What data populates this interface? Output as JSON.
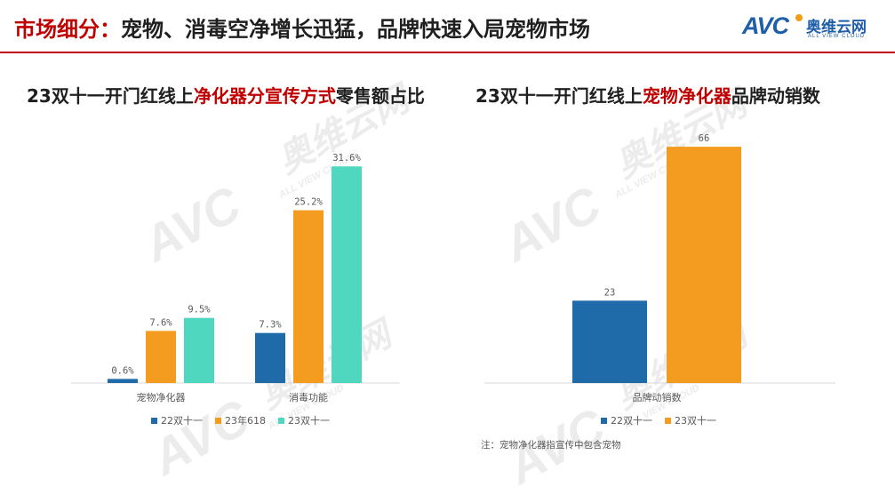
{
  "header": {
    "title_prefix": "市场细分：",
    "title_rest": "宠物、消毒空净增长迅猛，品牌快速入局宠物市场",
    "logo_text": "AVC",
    "logo_cn": "奥维云网",
    "logo_en": "ALL VIEW CLOUD",
    "colors": {
      "accent": "#c00000",
      "brand": "#1f5ea8"
    }
  },
  "left_title": {
    "pre": "23双十一开门红线上",
    "highlight": "净化器分宣传方式",
    "post": "零售额占比"
  },
  "right_title": {
    "pre": "23双十一开门红线上",
    "highlight": "宠物净化器",
    "post": "品牌动销数"
  },
  "note": "注：宠物净化器指宣传中包含宠物",
  "watermark": {
    "logo": "AVC",
    "cn": "奥维云网",
    "en": "ALL VIEW CLOUD"
  },
  "chart_data": [
    {
      "type": "bar",
      "categories": [
        "宠物净化器",
        "消毒功能"
      ],
      "series": [
        {
          "name": "22双十一",
          "values": [
            0.6,
            7.3
          ],
          "labels": [
            "0.6%",
            "7.3%"
          ],
          "color": "#1f6aa8"
        },
        {
          "name": "23年618",
          "values": [
            7.6,
            25.2
          ],
          "labels": [
            "7.6%",
            "25.2%"
          ],
          "color": "#f39c1f"
        },
        {
          "name": "23双十一",
          "values": [
            9.5,
            31.6
          ],
          "labels": [
            "9.5%",
            "31.6%"
          ],
          "color": "#4fd8bf"
        }
      ],
      "legend": "bottom",
      "grid": false,
      "ylim": [
        0,
        35
      ]
    },
    {
      "type": "bar",
      "categories": [
        "品牌动销数"
      ],
      "series": [
        {
          "name": "22双十一",
          "values": [
            23
          ],
          "labels": [
            "23"
          ],
          "color": "#1f6aa8"
        },
        {
          "name": "23双十一",
          "values": [
            66
          ],
          "labels": [
            "66"
          ],
          "color": "#f39c1f"
        }
      ],
      "legend": "bottom",
      "grid": false,
      "ylim": [
        0,
        70
      ]
    }
  ]
}
